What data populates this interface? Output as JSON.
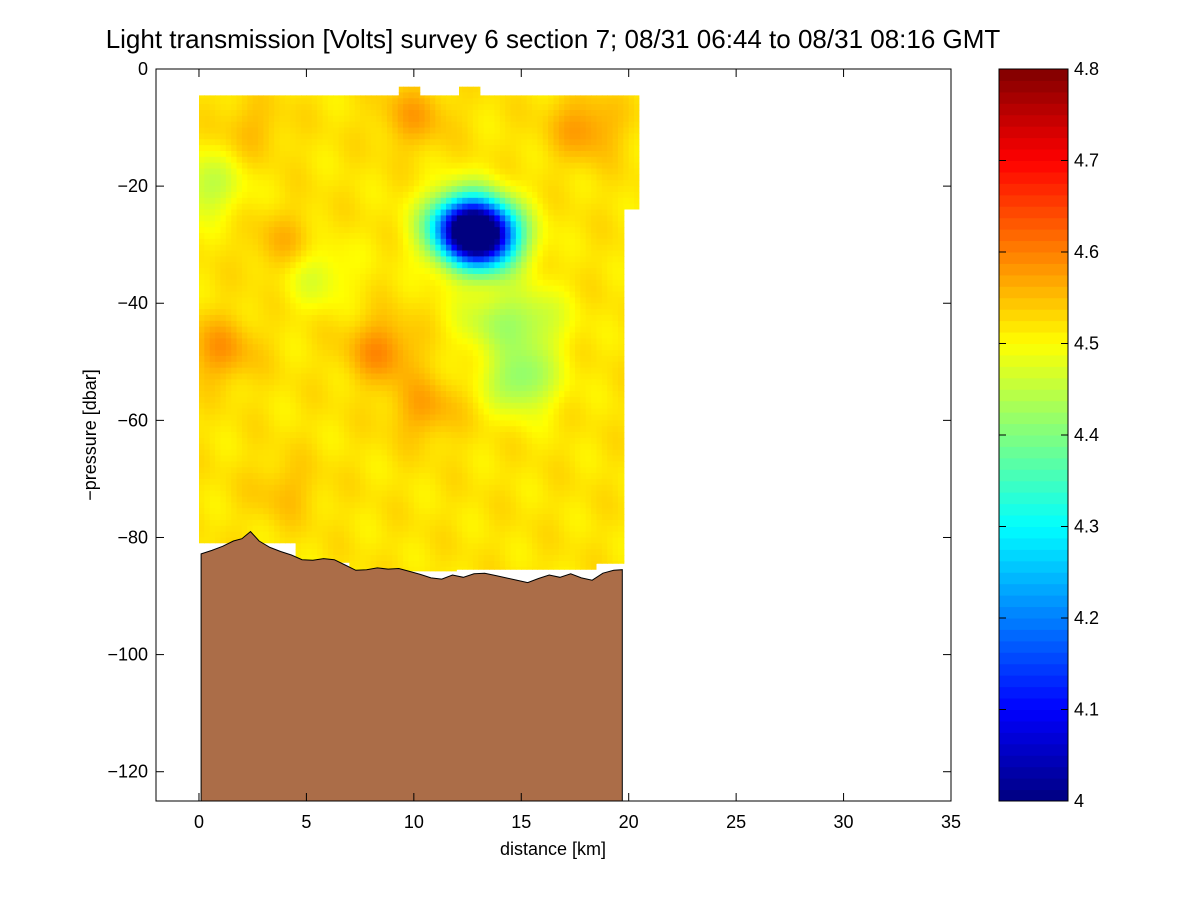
{
  "chart_data": {
    "type": "heatmap",
    "title": "Light transmission [Volts] survey 6 section 7; 08/31 06:44 to 08/31 08:16 GMT",
    "xlabel": "distance [km]",
    "ylabel": "−pressure [dbar]",
    "xlim": [
      -2,
      35
    ],
    "ylim": [
      -125,
      0
    ],
    "x_ticks": [
      0,
      5,
      10,
      15,
      20,
      25,
      30,
      35
    ],
    "x_tick_labels": [
      "0",
      "5",
      "10",
      "15",
      "20",
      "25",
      "30",
      "35"
    ],
    "y_ticks": [
      0,
      -20,
      -40,
      -60,
      -80,
      -100,
      -120
    ],
    "y_tick_labels": [
      "0",
      "−20",
      "−40",
      "−60",
      "−80",
      "−100",
      "−120"
    ],
    "colorbar": {
      "range": [
        4.0,
        4.8
      ],
      "ticks": [
        4,
        4.1,
        4.2,
        4.3,
        4.4,
        4.5,
        4.6,
        4.7,
        4.8
      ],
      "tick_labels": [
        "4",
        "4.1",
        "4.2",
        "4.3",
        "4.4",
        "4.5",
        "4.6",
        "4.7",
        "4.8"
      ],
      "colormap": "jet"
    },
    "field": {
      "x_range": [
        0,
        20.5
      ],
      "y_range": [
        -4.5,
        -86
      ],
      "background_value": 4.52,
      "features": [
        {
          "x": 2.5,
          "y": -10,
          "value": 4.55
        },
        {
          "x": 10,
          "y": -8,
          "value": 4.57
        },
        {
          "x": 18,
          "y": -10,
          "value": 4.58
        },
        {
          "x": 1,
          "y": -48,
          "value": 4.58
        },
        {
          "x": 4,
          "y": -30,
          "value": 4.56
        },
        {
          "x": 8.5,
          "y": -48,
          "value": 4.59
        },
        {
          "x": 10.5,
          "y": -58,
          "value": 4.57
        },
        {
          "x": 4,
          "y": -72,
          "value": 4.55
        },
        {
          "x": 0.4,
          "y": -20,
          "value": 4.45
        },
        {
          "x": 5.5,
          "y": -35,
          "value": 4.47
        },
        {
          "x": 13.5,
          "y": -43,
          "value": 4.46
        },
        {
          "x": 15.5,
          "y": -43,
          "value": 4.45
        },
        {
          "x": 15,
          "y": -53,
          "value": 4.41
        },
        {
          "x": 12.2,
          "y": -27,
          "value": 4.18
        },
        {
          "x": 13.3,
          "y": -28.5,
          "value": 4.03
        }
      ]
    },
    "seafloor": {
      "color": "#ab6d48",
      "x": [
        0.1,
        0.6,
        1.1,
        1.6,
        2.0,
        2.4,
        2.8,
        3.3,
        3.8,
        4.3,
        4.8,
        5.3,
        5.8,
        6.3,
        6.8,
        7.3,
        7.8,
        8.3,
        8.8,
        9.3,
        9.8,
        10.3,
        10.8,
        11.3,
        11.8,
        12.3,
        12.8,
        13.3,
        13.8,
        14.3,
        14.8,
        15.3,
        15.8,
        16.3,
        16.8,
        17.3,
        17.8,
        18.3,
        18.8,
        19.3,
        19.7
      ],
      "y": [
        -82.8,
        -82.2,
        -81.5,
        -80.6,
        -80.2,
        -79.0,
        -80.6,
        -81.7,
        -82.4,
        -83.0,
        -83.8,
        -83.9,
        -83.6,
        -83.8,
        -84.7,
        -85.6,
        -85.5,
        -85.2,
        -85.4,
        -85.3,
        -85.8,
        -86.3,
        -86.9,
        -87.1,
        -86.4,
        -86.8,
        -86.2,
        -86.1,
        -86.5,
        -86.9,
        -87.3,
        -87.7,
        -87.0,
        -86.4,
        -86.8,
        -86.2,
        -86.9,
        -87.3,
        -86.1,
        -85.6,
        -85.5
      ],
      "bottom": -125
    },
    "grid": false,
    "legend": "none"
  }
}
